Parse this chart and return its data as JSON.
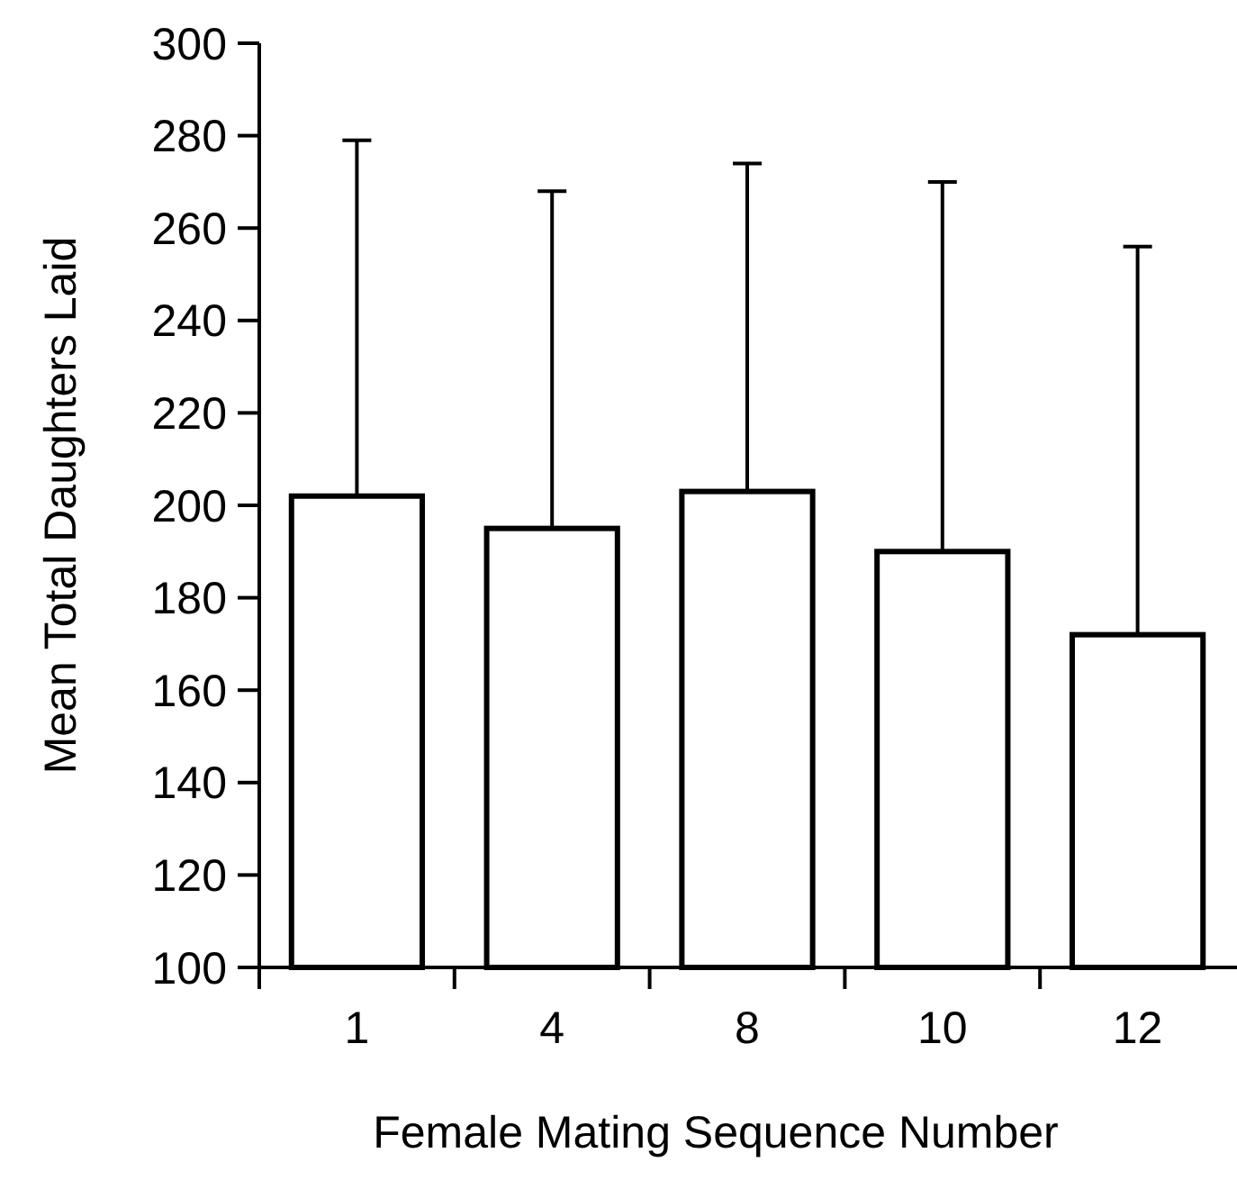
{
  "chart_data": {
    "type": "bar",
    "xlabel": "Female Mating Sequence Number",
    "ylabel": "Mean Total Daughters Laid",
    "categories": [
      "1",
      "4",
      "8",
      "10",
      "12"
    ],
    "values": [
      202,
      195,
      203,
      190,
      172
    ],
    "errors": [
      [
        202,
        279
      ],
      [
        195,
        268
      ],
      [
        203,
        274
      ],
      [
        190,
        270
      ],
      [
        172,
        256
      ]
    ],
    "color": "#ffffff",
    "ylim": [
      100,
      300
    ],
    "yticks": [
      100,
      120,
      140,
      160,
      180,
      200,
      220,
      240,
      260,
      280,
      300
    ],
    "grid": false
  }
}
